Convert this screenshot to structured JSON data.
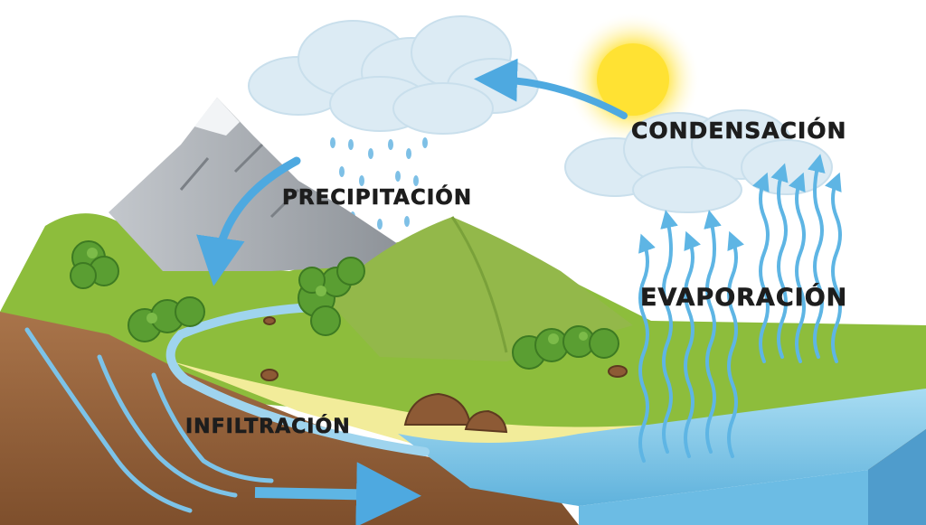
{
  "labels": {
    "condensation": "CONDENSACIÓN",
    "precipitation": "PRECIPITACIÓN",
    "evaporation": "EVAPORACIÓN",
    "infiltration": "INFILTRACIÓN"
  },
  "colors": {
    "sky": "#ffffff",
    "cloud": "#dcebf4",
    "sun": "#ffe233",
    "mountain": "#a9adb2",
    "grass": "#8dbd3c",
    "hill": "#93b84a",
    "soil": "#96643b",
    "water": "#8fcdea",
    "arrow": "#4ea9e0",
    "label_text": "#1d1d1d"
  }
}
